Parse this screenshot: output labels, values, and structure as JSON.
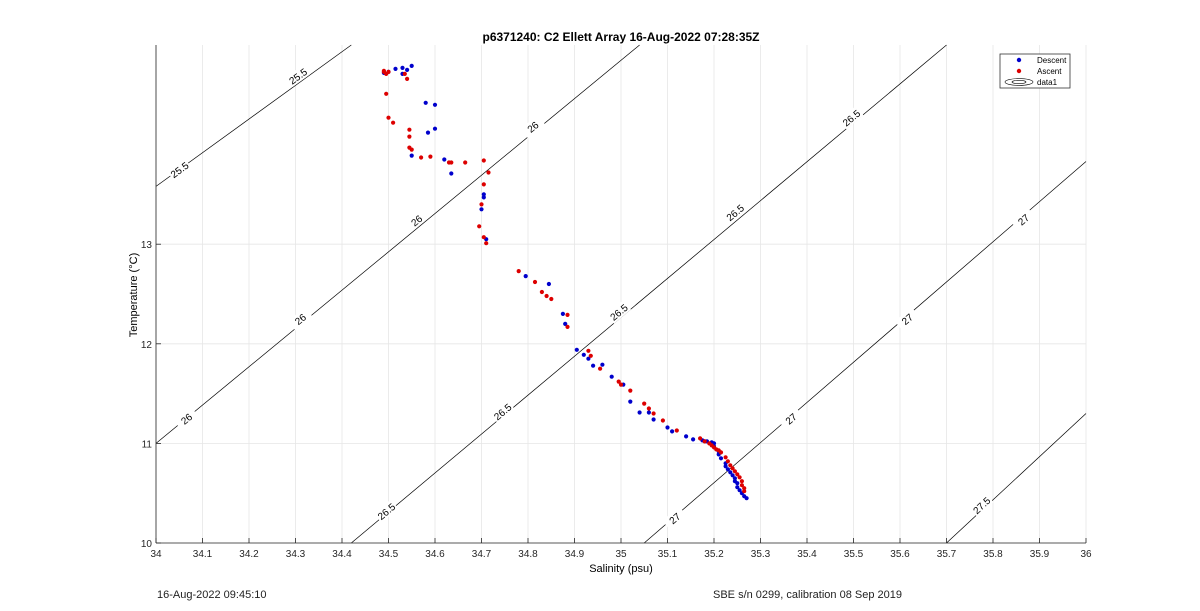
{
  "chart_data": {
    "type": "scatter",
    "title": "p6371240: C2 Ellett Array 16-Aug-2022 07:28:35Z",
    "xlabel": "Salinity (psu)",
    "ylabel": "Temperature (°C)",
    "xlim": [
      34,
      36
    ],
    "ylim": [
      10,
      15
    ],
    "x_ticks": [
      34,
      34.1,
      34.2,
      34.3,
      34.4,
      34.5,
      34.6,
      34.7,
      34.8,
      34.9,
      35,
      35.1,
      35.2,
      35.3,
      35.4,
      35.5,
      35.6,
      35.7,
      35.8,
      35.9,
      36
    ],
    "x_tick_labels": [
      "34",
      "34.1",
      "34.2",
      "34.3",
      "34.4",
      "34.5",
      "34.6",
      "34.7",
      "34.8",
      "34.9",
      "35",
      "35.1",
      "35.2",
      "35.3",
      "35.4",
      "35.5",
      "35.6",
      "35.7",
      "35.8",
      "35.9",
      "36"
    ],
    "y_ticks": [
      10,
      11,
      12,
      13
    ],
    "y_tick_labels": [
      "10",
      "11",
      "12",
      "13"
    ],
    "grid": true,
    "legend_position": "top-right",
    "series": [
      {
        "name": "Descent",
        "color": "#0000cc",
        "points": [
          [
            34.53,
            14.77
          ],
          [
            34.55,
            14.79
          ],
          [
            34.515,
            14.76
          ],
          [
            34.54,
            14.75
          ],
          [
            34.5,
            14.73
          ],
          [
            34.49,
            14.72
          ],
          [
            34.53,
            14.71
          ],
          [
            34.58,
            14.42
          ],
          [
            34.6,
            14.4
          ],
          [
            34.6,
            14.16
          ],
          [
            34.585,
            14.12
          ],
          [
            34.55,
            13.89
          ],
          [
            34.62,
            13.85
          ],
          [
            34.635,
            13.71
          ],
          [
            34.705,
            13.47
          ],
          [
            34.705,
            13.5
          ],
          [
            34.7,
            13.35
          ],
          [
            34.71,
            13.05
          ],
          [
            34.795,
            12.68
          ],
          [
            34.845,
            12.6
          ],
          [
            34.875,
            12.3
          ],
          [
            34.88,
            12.2
          ],
          [
            34.905,
            11.94
          ],
          [
            34.92,
            11.89
          ],
          [
            34.93,
            11.85
          ],
          [
            34.94,
            11.78
          ],
          [
            34.96,
            11.79
          ],
          [
            34.98,
            11.67
          ],
          [
            35.005,
            11.59
          ],
          [
            35.02,
            11.42
          ],
          [
            35.04,
            11.31
          ],
          [
            35.06,
            11.31
          ],
          [
            35.07,
            11.24
          ],
          [
            35.1,
            11.16
          ],
          [
            35.11,
            11.12
          ],
          [
            35.14,
            11.07
          ],
          [
            35.155,
            11.04
          ],
          [
            35.175,
            11.03
          ],
          [
            35.18,
            11.02
          ],
          [
            35.185,
            11.02
          ],
          [
            35.195,
            11.01
          ],
          [
            35.2,
            11.0
          ],
          [
            35.2,
            10.97
          ],
          [
            35.21,
            10.92
          ],
          [
            35.21,
            10.89
          ],
          [
            35.215,
            10.85
          ],
          [
            35.225,
            10.8
          ],
          [
            35.225,
            10.77
          ],
          [
            35.23,
            10.74
          ],
          [
            35.235,
            10.71
          ],
          [
            35.24,
            10.68
          ],
          [
            35.245,
            10.65
          ],
          [
            35.245,
            10.62
          ],
          [
            35.25,
            10.6
          ],
          [
            35.25,
            10.56
          ],
          [
            35.255,
            10.53
          ],
          [
            35.26,
            10.5
          ],
          [
            35.265,
            10.47
          ],
          [
            35.27,
            10.45
          ]
        ]
      },
      {
        "name": "Ascent",
        "color": "#dd0000",
        "points": [
          [
            34.49,
            14.73
          ],
          [
            34.495,
            14.71
          ],
          [
            34.5,
            14.73
          ],
          [
            34.49,
            14.74
          ],
          [
            34.54,
            14.66
          ],
          [
            34.535,
            14.71
          ],
          [
            34.495,
            14.51
          ],
          [
            34.5,
            14.27
          ],
          [
            34.51,
            14.22
          ],
          [
            34.545,
            14.15
          ],
          [
            34.545,
            14.08
          ],
          [
            34.545,
            13.97
          ],
          [
            34.55,
            13.95
          ],
          [
            34.57,
            13.87
          ],
          [
            34.59,
            13.88
          ],
          [
            34.63,
            13.82
          ],
          [
            34.635,
            13.82
          ],
          [
            34.665,
            13.82
          ],
          [
            34.705,
            13.84
          ],
          [
            34.715,
            13.72
          ],
          [
            34.705,
            13.6
          ],
          [
            34.7,
            13.4
          ],
          [
            34.695,
            13.18
          ],
          [
            34.705,
            13.07
          ],
          [
            34.71,
            13.01
          ],
          [
            34.78,
            12.73
          ],
          [
            34.815,
            12.62
          ],
          [
            34.83,
            12.52
          ],
          [
            34.84,
            12.48
          ],
          [
            34.85,
            12.45
          ],
          [
            34.885,
            12.29
          ],
          [
            34.885,
            12.17
          ],
          [
            34.93,
            11.93
          ],
          [
            34.935,
            11.88
          ],
          [
            34.955,
            11.75
          ],
          [
            34.995,
            11.62
          ],
          [
            35.0,
            11.59
          ],
          [
            35.02,
            11.53
          ],
          [
            35.05,
            11.4
          ],
          [
            35.06,
            11.35
          ],
          [
            35.07,
            11.3
          ],
          [
            35.09,
            11.23
          ],
          [
            35.12,
            11.13
          ],
          [
            35.17,
            11.05
          ],
          [
            35.18,
            11.02
          ],
          [
            35.19,
            11.0
          ],
          [
            35.195,
            10.98
          ],
          [
            35.2,
            10.96
          ],
          [
            35.205,
            10.94
          ],
          [
            35.21,
            10.93
          ],
          [
            35.215,
            10.91
          ],
          [
            35.225,
            10.86
          ],
          [
            35.23,
            10.82
          ],
          [
            35.235,
            10.78
          ],
          [
            35.24,
            10.75
          ],
          [
            35.245,
            10.72
          ],
          [
            35.25,
            10.69
          ],
          [
            35.255,
            10.66
          ],
          [
            35.26,
            10.62
          ],
          [
            35.26,
            10.58
          ],
          [
            35.265,
            10.55
          ],
          [
            35.265,
            10.52
          ]
        ]
      }
    ],
    "contours": {
      "name": "data1",
      "color": "#000000",
      "lines": [
        {
          "label": "25.5",
          "points": [
            [
              34.0,
              13.58
            ],
            [
              34.42,
              15.0
            ]
          ],
          "label_positions": [
            [
              34.05,
              13.75
            ],
            [
              34.305,
              14.69
            ]
          ]
        },
        {
          "label": "26",
          "points": [
            [
              34.0,
              11.0
            ],
            [
              35.04,
              15.0
            ]
          ],
          "label_positions": [
            [
              34.065,
              11.25
            ],
            [
              34.31,
              12.25
            ],
            [
              34.56,
              13.24
            ],
            [
              34.81,
              14.18
            ]
          ]
        },
        {
          "label": "26.5",
          "points": [
            [
              34.42,
              10.0
            ],
            [
              35.7,
              15.0
            ]
          ],
          "label_positions": [
            [
              34.495,
              10.32
            ],
            [
              34.745,
              11.32
            ],
            [
              34.995,
              12.32
            ],
            [
              35.245,
              13.32
            ],
            [
              35.495,
              14.27
            ]
          ]
        },
        {
          "label": "27",
          "points": [
            [
              35.05,
              10.0
            ],
            [
              36.0,
              13.83
            ]
          ],
          "label_positions": [
            [
              35.115,
              10.25
            ],
            [
              35.365,
              11.25
            ],
            [
              35.615,
              12.25
            ],
            [
              35.865,
              13.25
            ]
          ]
        },
        {
          "label": "27.5",
          "points": [
            [
              35.7,
              10.0
            ],
            [
              36.0,
              11.3
            ]
          ],
          "label_positions": [
            [
              35.775,
              10.38
            ]
          ]
        }
      ]
    }
  },
  "footer": {
    "timestamp": "16-Aug-2022 09:45:10",
    "calibration": "SBE s/n 0299, calibration 08 Sep 2019"
  }
}
